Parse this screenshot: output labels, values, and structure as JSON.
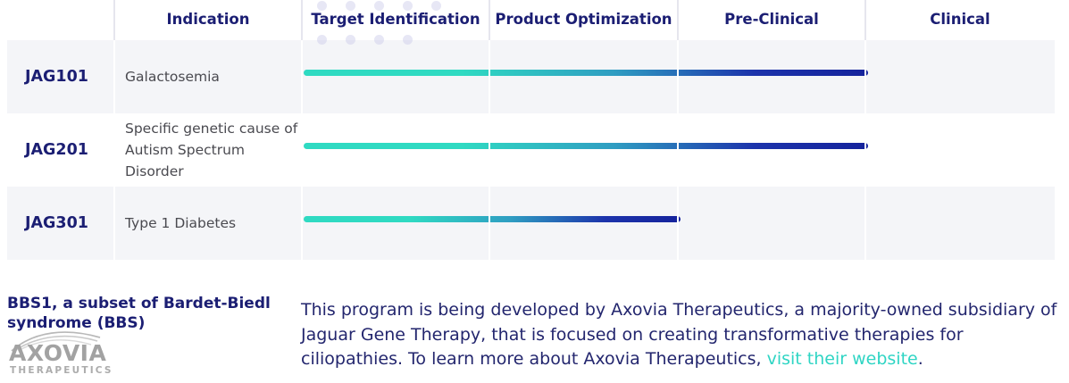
{
  "colors": {
    "navy": "#1b1e73",
    "teal_accent": "#2fd5c4",
    "bar_gradient_start": "#2fdac2",
    "bar_gradient_end": "#15239c",
    "alt_row_background": "#f4f5f8",
    "indication_text": "#4a4a50",
    "logo_gray": "#a2a2a2"
  },
  "pipeline_table": {
    "columns": {
      "indication": "Indication",
      "target_identification": "Target Identification",
      "product_optimization": "Product Optimization",
      "preclinical": "Pre-Clinical",
      "clinical": "Clinical"
    },
    "stage_columns": [
      "Target Identification",
      "Product Optimization",
      "Pre-Clinical",
      "Clinical"
    ],
    "rows": [
      {
        "program": "JAG101",
        "indication": "Galactosemia",
        "stages_completed": 3,
        "stages_total": 4,
        "progress_through": "Pre-Clinical"
      },
      {
        "program": "JAG201",
        "indication": "Specific genetic cause of Autism Spectrum Disorder",
        "stages_completed": 3,
        "stages_total": 4,
        "progress_through": "Pre-Clinical"
      },
      {
        "program": "JAG301",
        "indication": "Type 1 Diabetes",
        "stages_completed": 2,
        "stages_total": 4,
        "progress_through": "Product Optimization"
      }
    ]
  },
  "footnote": {
    "heading": "BBS1, a subset of Bardet-Biedl syndrome (BBS)"
  },
  "logo": {
    "wordmark": "AXOVIA",
    "subtext": "THERAPEUTICS"
  },
  "about": {
    "text_before_link": "This program is being developed by Axovia Therapeutics, a majority-owned subsidiary of Jaguar Gene Therapy, that is focused on creating transformative therapies for ciliopathies. To learn more about Axovia Therapeutics, ",
    "link_text": "visit their website",
    "text_after_link": "."
  }
}
